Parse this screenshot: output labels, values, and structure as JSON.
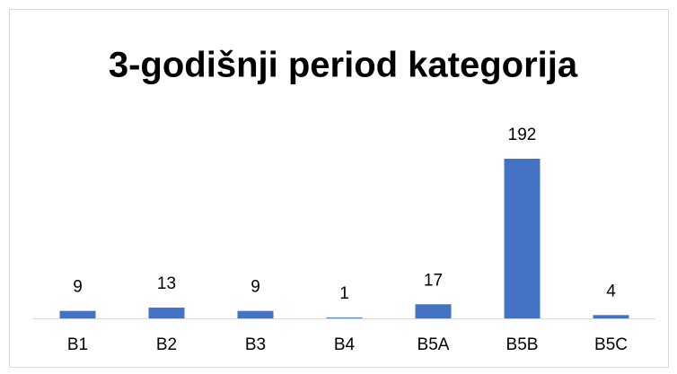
{
  "chart_data": {
    "type": "bar",
    "title": "3-godišnji period kategorija",
    "categories": [
      "B1",
      "B2",
      "B3",
      "B4",
      "B5A",
      "B5B",
      "B5C"
    ],
    "values": [
      9,
      13,
      9,
      1,
      17,
      192,
      4
    ],
    "color": "#4472c4"
  }
}
